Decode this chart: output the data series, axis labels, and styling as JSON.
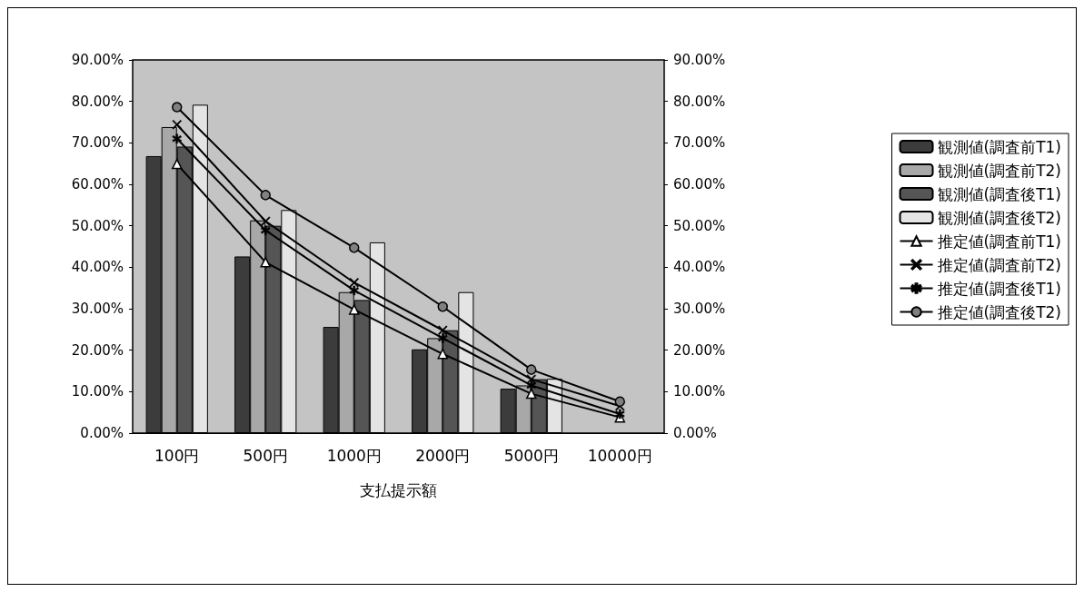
{
  "chart_data": {
    "type": "bar",
    "xlabel": "支払提示額",
    "categories": [
      "100円",
      "500円",
      "1000円",
      "2000円",
      "5000円",
      "10000円"
    ],
    "series": [
      {
        "name": "観測値(調査前T1)",
        "color": "#3c3c3c",
        "values": [
          66.8,
          42.6,
          25.6,
          20.2,
          10.7,
          null
        ]
      },
      {
        "name": "観測値(調査前T2)",
        "color": "#a8a8a8",
        "values": [
          73.8,
          51.3,
          34.0,
          22.9,
          11.5,
          null
        ]
      },
      {
        "name": "観測値(調査後T1)",
        "color": "#555555",
        "values": [
          69.1,
          50.0,
          32.1,
          24.8,
          13.0,
          null
        ]
      },
      {
        "name": "観測値(調査後T2)",
        "color": "#e4e4e4",
        "values": [
          79.2,
          53.8,
          46.0,
          34.0,
          13.1,
          null
        ]
      },
      {
        "name": "推定値(調査前T1)",
        "type": "line",
        "marker": "triangle",
        "color": "#000000",
        "values": [
          64.9,
          41.2,
          29.8,
          19.1,
          9.5,
          3.8
        ]
      },
      {
        "name": "推定値(調査前T2)",
        "type": "line",
        "marker": "cross",
        "color": "#000000",
        "values": [
          74.4,
          51.1,
          36.3,
          24.8,
          13.0,
          6.5
        ]
      },
      {
        "name": "推定値(調査後T1)",
        "type": "line",
        "marker": "star",
        "color": "#000000",
        "values": [
          71.0,
          48.9,
          34.4,
          22.9,
          11.5,
          4.6
        ]
      },
      {
        "name": "推定値(調査後T2)",
        "type": "line",
        "marker": "circle",
        "color": "#000000",
        "values": [
          78.6,
          57.4,
          44.7,
          30.5,
          15.3,
          7.6
        ]
      }
    ],
    "ylim": [
      0,
      90
    ],
    "yticks": [
      {
        "value": 0,
        "label": "0.00%"
      },
      {
        "value": 10,
        "label": "10.00%"
      },
      {
        "value": 20,
        "label": "20.00%"
      },
      {
        "value": 30,
        "label": "30.00%"
      },
      {
        "value": 40,
        "label": "40.00%"
      },
      {
        "value": 50,
        "label": "50.00%"
      },
      {
        "value": 60,
        "label": "60.00%"
      },
      {
        "value": 70,
        "label": "70.00%"
      },
      {
        "value": 80,
        "label": "80.00%"
      },
      {
        "value": 90,
        "label": "90.00%"
      }
    ],
    "y2lim": [
      0,
      90
    ],
    "y2ticks": [
      {
        "value": 0,
        "label": "0.00%"
      },
      {
        "value": 10,
        "label": "10.00%"
      },
      {
        "value": 20,
        "label": "20.00%"
      },
      {
        "value": 30,
        "label": "30.00%"
      },
      {
        "value": 40,
        "label": "40.00%"
      },
      {
        "value": 50,
        "label": "50.00%"
      },
      {
        "value": 60,
        "label": "60.00%"
      },
      {
        "value": 70,
        "label": "70.00%"
      },
      {
        "value": 80,
        "label": "80.00%"
      },
      {
        "value": 90,
        "label": "90.00%"
      }
    ],
    "grid": false,
    "legend": "right"
  }
}
